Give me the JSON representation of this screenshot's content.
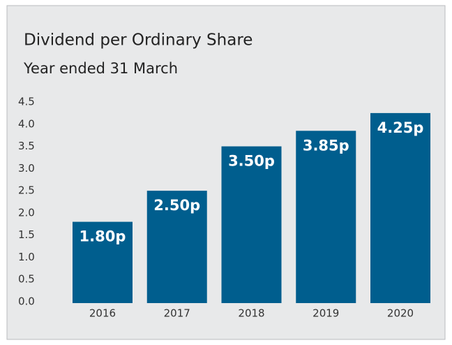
{
  "chart_data": {
    "type": "bar",
    "title": "Dividend per Ordinary Share",
    "subtitle": "Year ended 31 March",
    "categories": [
      "2016",
      "2017",
      "2018",
      "2019",
      "2020"
    ],
    "values": [
      1.8,
      2.5,
      3.5,
      3.85,
      4.25
    ],
    "value_labels": [
      "1.80p",
      "2.50p",
      "3.50p",
      "3.85p",
      "4.25p"
    ],
    "color": "#005e8e",
    "ylim": [
      0,
      4.5
    ],
    "yticks": [
      {
        "value": 0,
        "label": "0.0"
      },
      0.5,
      {
        "value": 1,
        "label": "1.0"
      },
      1.5,
      {
        "value": 2,
        "label": "2.0"
      },
      2.5,
      {
        "value": 3,
        "label": "3.0"
      },
      3.5,
      {
        "value": 4,
        "label": "4.0"
      },
      4.5
    ],
    "grid": false
  }
}
